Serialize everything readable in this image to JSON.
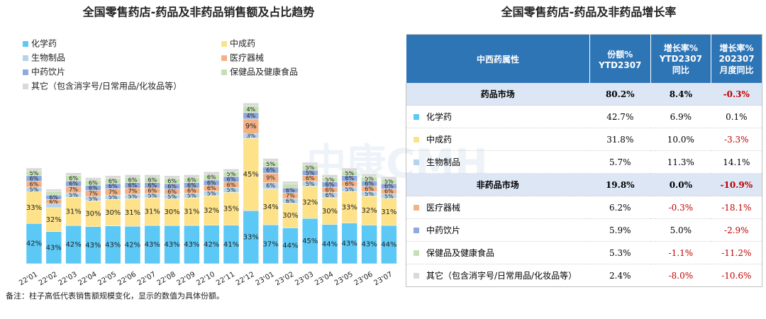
{
  "chart_data": {
    "type": "bar",
    "stacked": true,
    "title": "全国零售药店-药品及非药品销售额及占比趋势",
    "watermark": "中康CMH",
    "note": "备注：柱子高低代表销售额规模变化，显示的数值为具体份额。",
    "categories": [
      "22'01",
      "22'02",
      "22'03",
      "22'04",
      "22'05",
      "22'06",
      "22'07",
      "22'08",
      "22'09",
      "22'10",
      "22'11",
      "22'12",
      "23'01",
      "23'02",
      "23'03",
      "23'04",
      "23'05",
      "23'06",
      "23'07"
    ],
    "relative_sales": [
      100,
      78,
      95,
      90,
      92,
      93,
      93,
      92,
      93,
      96,
      99,
      168,
      110,
      86,
      106,
      93,
      100,
      94,
      91
    ],
    "series": [
      {
        "name": "化学药",
        "color": "#5bc8f5",
        "values": [
          42,
          43,
          42,
          43,
          43,
          42,
          43,
          43,
          43,
          42,
          41,
          33,
          37,
          44,
          45,
          44,
          43,
          43,
          44
        ],
        "value_labels": [
          "42%",
          "43%",
          "42%",
          "43%",
          "43%",
          "42%",
          "43%",
          "43%",
          "43%",
          "42%",
          "41%",
          "33%",
          "37%",
          "44%",
          "45%",
          "44%",
          "43%",
          "43%",
          "44%"
        ]
      },
      {
        "name": "中成药",
        "color": "#fde28a",
        "values": [
          33,
          32,
          31,
          30,
          30,
          31,
          31,
          30,
          31,
          32,
          35,
          45,
          34,
          30,
          32,
          30,
          33,
          32,
          31
        ],
        "value_labels": [
          "33%",
          "32%",
          "31%",
          "30%",
          "30%",
          "31%",
          "31%",
          "30%",
          "31%",
          "32%",
          "35%",
          "45%",
          "34%",
          "30%",
          "32%",
          "30%",
          "33%",
          "32%",
          "31%"
        ]
      },
      {
        "name": "生物制品",
        "color": "#b4d3ec",
        "values": [
          5,
          5,
          5,
          5,
          5,
          5,
          5,
          5,
          5,
          5,
          5,
          3,
          6,
          6,
          5,
          6,
          5,
          5,
          5
        ],
        "value_labels": [
          "5%",
          "5%",
          "5%",
          "5%",
          "5%",
          "5%",
          "5%",
          "5%",
          "5%",
          "5%",
          "5%",
          "3%",
          "6%",
          "6%",
          "5%",
          "6%",
          "5%",
          "5%",
          "5%"
        ]
      },
      {
        "name": "医疗器械",
        "color": "#f4b183",
        "values": [
          6,
          6,
          7,
          7,
          7,
          7,
          6,
          6,
          6,
          6,
          6,
          9,
          9,
          7,
          6,
          6,
          6,
          6,
          6
        ],
        "value_labels": [
          "6%",
          "6%",
          "7%",
          "7%",
          "7%",
          "7%",
          "6%",
          "6%",
          "6%",
          "6%",
          "6%",
          "9%",
          "9%",
          "7%",
          "6%",
          "6%",
          "6%",
          "6%",
          "6%"
        ]
      },
      {
        "name": "中药饮片",
        "color": "#8faadc",
        "values": [
          6,
          6,
          6,
          6,
          6,
          6,
          6,
          6,
          6,
          6,
          6,
          4,
          6,
          6,
          5,
          6,
          6,
          6,
          6
        ],
        "value_labels": [
          "6%",
          "6%",
          "6%",
          "6%",
          "6%",
          "6%",
          "6%",
          "6%",
          "6%",
          "6%",
          "6%",
          "4%",
          "6%",
          "6%",
          "5%",
          "6%",
          "6%",
          "6%",
          "6%"
        ]
      },
      {
        "name": "保健品及健康食品",
        "color": "#c5e0b4",
        "values": [
          5,
          5,
          6,
          6,
          6,
          6,
          6,
          6,
          6,
          6,
          5,
          4,
          5,
          5,
          5,
          5,
          5,
          5,
          5
        ],
        "value_labels": [
          "5%",
          "5%",
          "6%",
          "6%",
          "6%",
          "6%",
          "6%",
          "6%",
          "6%",
          "6%",
          "5%",
          "4%",
          "5%",
          "5%",
          "5%",
          "5%",
          "5%",
          "5%",
          "5%"
        ]
      },
      {
        "name": "其它（包含消字号/日常用品/化妆品等）",
        "color": "#d9d9d9",
        "values": [
          3,
          3,
          3,
          3,
          3,
          3,
          3,
          3,
          3,
          3,
          3,
          2,
          3,
          3,
          3,
          3,
          3,
          3,
          3
        ]
      }
    ]
  },
  "table": {
    "title": "全国零售药店-药品及非药品增长率",
    "header": [
      "中西药属性",
      "份额%\nYTD2307",
      "增长率%\nYTD2307\n同比",
      "增长率%\n202307\n月度同比"
    ],
    "rows": [
      {
        "group": true,
        "label": "药品市场",
        "cells": [
          "80.2%",
          "8.4%",
          "-0.3%"
        ]
      },
      {
        "label": "化学药",
        "color": "#5bc8f5",
        "cells": [
          "42.7%",
          "6.9%",
          "0.1%"
        ]
      },
      {
        "label": "中成药",
        "color": "#fde28a",
        "cells": [
          "31.8%",
          "10.0%",
          "-3.3%"
        ]
      },
      {
        "label": "生物制品",
        "color": "#b4d3ec",
        "cells": [
          "5.7%",
          "11.3%",
          "14.1%"
        ]
      },
      {
        "group": true,
        "label": "非药品市场",
        "cells": [
          "19.8%",
          "0.0%",
          "-10.9%"
        ]
      },
      {
        "label": "医疗器械",
        "color": "#f4b183",
        "cells": [
          "6.2%",
          "-0.3%",
          "-18.1%"
        ]
      },
      {
        "label": "中药饮片",
        "color": "#8faadc",
        "cells": [
          "5.9%",
          "5.0%",
          "-2.9%"
        ]
      },
      {
        "label": "保健品及健康食品",
        "color": "#c5e0b4",
        "cells": [
          "5.3%",
          "-1.1%",
          "-11.2%"
        ]
      },
      {
        "label": "其它（包含消字号/日常用品/化妆品等）",
        "color": "#d9d9d9",
        "cells": [
          "2.4%",
          "-8.0%",
          "-10.6%"
        ]
      }
    ]
  }
}
